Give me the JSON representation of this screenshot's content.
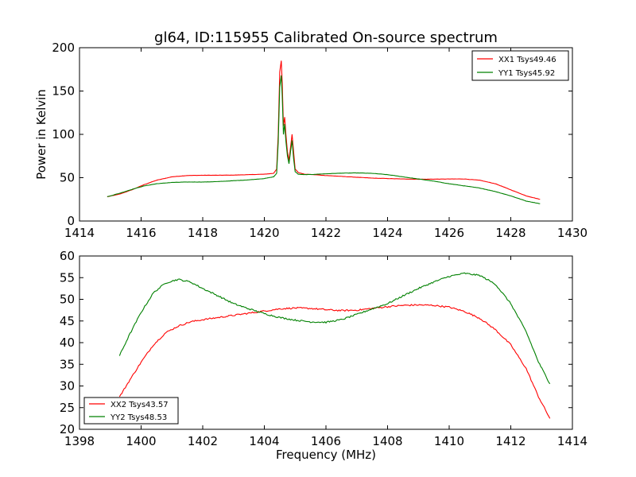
{
  "figure_title": "gl64, ID:115955 Calibrated On-source spectrum",
  "colors": {
    "red": "#ff0000",
    "green": "#008000",
    "axis": "#000000"
  },
  "chart_data": [
    {
      "type": "line",
      "title": "gl64, ID:115955 Calibrated On-source spectrum",
      "xlabel": "",
      "ylabel": "Power in Kelvin",
      "xlim": [
        1414,
        1430
      ],
      "ylim": [
        0,
        200
      ],
      "xticks": [
        "1414",
        "1416",
        "1418",
        "1420",
        "1422",
        "1424",
        "1426",
        "1428",
        "1430"
      ],
      "yticks": [
        "0",
        "50",
        "100",
        "150",
        "200"
      ],
      "legend": "top-right",
      "series": [
        {
          "name": "XX1 Tsys49.46",
          "color": "#ff0000",
          "points": [
            [
              1414.9,
              28
            ],
            [
              1415.3,
              31
            ],
            [
              1415.7,
              36
            ],
            [
              1416.1,
              42
            ],
            [
              1416.5,
              47
            ],
            [
              1417.0,
              51
            ],
            [
              1417.5,
              52.5
            ],
            [
              1418.0,
              52.8
            ],
            [
              1418.5,
              52.8
            ],
            [
              1419.0,
              53
            ],
            [
              1419.5,
              53.5
            ],
            [
              1420.0,
              54
            ],
            [
              1420.3,
              55
            ],
            [
              1420.4,
              60
            ],
            [
              1420.45,
              100
            ],
            [
              1420.5,
              172
            ],
            [
              1420.55,
              185
            ],
            [
              1420.58,
              160
            ],
            [
              1420.62,
              110
            ],
            [
              1420.66,
              120
            ],
            [
              1420.7,
              100
            ],
            [
              1420.75,
              80
            ],
            [
              1420.8,
              70
            ],
            [
              1420.85,
              85
            ],
            [
              1420.9,
              100
            ],
            [
              1420.95,
              80
            ],
            [
              1421.0,
              60
            ],
            [
              1421.1,
              56
            ],
            [
              1421.3,
              54
            ],
            [
              1421.6,
              53.5
            ],
            [
              1422.0,
              52.5
            ],
            [
              1422.5,
              51.5
            ],
            [
              1423.0,
              50.5
            ],
            [
              1423.5,
              49.5
            ],
            [
              1424.0,
              49
            ],
            [
              1424.5,
              48.5
            ],
            [
              1425.0,
              48.2
            ],
            [
              1425.5,
              48.3
            ],
            [
              1426.0,
              48.5
            ],
            [
              1426.5,
              48.5
            ],
            [
              1427.0,
              47
            ],
            [
              1427.5,
              43
            ],
            [
              1428.0,
              36
            ],
            [
              1428.5,
              29
            ],
            [
              1428.95,
              25
            ]
          ]
        },
        {
          "name": "YY1 Tsys45.92",
          "color": "#008000",
          "points": [
            [
              1414.9,
              28
            ],
            [
              1415.3,
              32
            ],
            [
              1415.7,
              36.5
            ],
            [
              1416.1,
              40.5
            ],
            [
              1416.5,
              43
            ],
            [
              1417.0,
              44.5
            ],
            [
              1417.5,
              45
            ],
            [
              1418.0,
              45
            ],
            [
              1418.5,
              45.5
            ],
            [
              1419.0,
              46.5
            ],
            [
              1419.5,
              47.5
            ],
            [
              1420.0,
              49
            ],
            [
              1420.3,
              51
            ],
            [
              1420.4,
              55
            ],
            [
              1420.45,
              90
            ],
            [
              1420.5,
              155
            ],
            [
              1420.55,
              168
            ],
            [
              1420.58,
              145
            ],
            [
              1420.62,
              100
            ],
            [
              1420.66,
              112
            ],
            [
              1420.7,
              92
            ],
            [
              1420.75,
              75
            ],
            [
              1420.8,
              66
            ],
            [
              1420.85,
              80
            ],
            [
              1420.9,
              93
            ],
            [
              1420.95,
              72
            ],
            [
              1421.0,
              57
            ],
            [
              1421.1,
              54
            ],
            [
              1421.3,
              53.5
            ],
            [
              1421.6,
              53.8
            ],
            [
              1422.0,
              54.5
            ],
            [
              1422.5,
              55.2
            ],
            [
              1423.0,
              55.5
            ],
            [
              1423.5,
              55
            ],
            [
              1424.0,
              53.5
            ],
            [
              1424.5,
              51
            ],
            [
              1425.0,
              48.5
            ],
            [
              1425.5,
              46
            ],
            [
              1426.0,
              43
            ],
            [
              1426.5,
              40.5
            ],
            [
              1427.0,
              38
            ],
            [
              1427.5,
              34
            ],
            [
              1428.0,
              29
            ],
            [
              1428.5,
              23
            ],
            [
              1428.95,
              20
            ]
          ]
        }
      ]
    },
    {
      "type": "line",
      "title": "",
      "xlabel": "Frequency (MHz)",
      "ylabel": "",
      "xlim": [
        1398,
        1414
      ],
      "ylim": [
        20,
        60
      ],
      "xticks": [
        "1398",
        "1400",
        "1402",
        "1404",
        "1406",
        "1408",
        "1410",
        "1412",
        "1414"
      ],
      "yticks": [
        "20",
        "25",
        "30",
        "35",
        "40",
        "45",
        "50",
        "55",
        "60"
      ],
      "legend": "bottom-left",
      "series": [
        {
          "name": "XX2 Tsys43.57",
          "color": "#ff0000",
          "points": [
            [
              1399.3,
              27.5
            ],
            [
              1399.6,
              31
            ],
            [
              1400.0,
              35.5
            ],
            [
              1400.4,
              39.5
            ],
            [
              1400.8,
              42.3
            ],
            [
              1401.2,
              43.8
            ],
            [
              1401.6,
              44.8
            ],
            [
              1402.0,
              45.3
            ],
            [
              1402.5,
              45.8
            ],
            [
              1403.0,
              46.3
            ],
            [
              1403.5,
              46.8
            ],
            [
              1404.0,
              47.3
            ],
            [
              1404.5,
              47.8
            ],
            [
              1405.0,
              48
            ],
            [
              1405.5,
              47.9
            ],
            [
              1406.0,
              47.6
            ],
            [
              1406.5,
              47.4
            ],
            [
              1407.0,
              47.5
            ],
            [
              1407.5,
              47.9
            ],
            [
              1408.0,
              48.3
            ],
            [
              1408.5,
              48.6
            ],
            [
              1409.0,
              48.7
            ],
            [
              1409.5,
              48.6
            ],
            [
              1410.0,
              48.2
            ],
            [
              1410.5,
              47.2
            ],
            [
              1411.0,
              45.6
            ],
            [
              1411.5,
              43
            ],
            [
              1412.0,
              39.5
            ],
            [
              1412.5,
              34
            ],
            [
              1412.9,
              27.5
            ],
            [
              1413.27,
              22.5
            ]
          ]
        },
        {
          "name": "YY2 Tsys48.53",
          "color": "#008000",
          "points": [
            [
              1399.3,
              37
            ],
            [
              1399.6,
              41.5
            ],
            [
              1400.0,
              47
            ],
            [
              1400.4,
              51.5
            ],
            [
              1400.8,
              53.8
            ],
            [
              1401.2,
              54.6
            ],
            [
              1401.6,
              54
            ],
            [
              1402.0,
              52.5
            ],
            [
              1402.5,
              50.8
            ],
            [
              1403.0,
              49
            ],
            [
              1403.5,
              47.8
            ],
            [
              1404.0,
              46.7
            ],
            [
              1404.5,
              45.8
            ],
            [
              1405.0,
              45.2
            ],
            [
              1405.5,
              44.8
            ],
            [
              1406.0,
              44.7
            ],
            [
              1406.5,
              45.3
            ],
            [
              1407.0,
              46.5
            ],
            [
              1407.5,
              47.8
            ],
            [
              1408.0,
              49
            ],
            [
              1408.5,
              50.8
            ],
            [
              1409.0,
              52.5
            ],
            [
              1409.5,
              54
            ],
            [
              1410.0,
              55.3
            ],
            [
              1410.5,
              56
            ],
            [
              1411.0,
              55.5
            ],
            [
              1411.5,
              53.5
            ],
            [
              1412.0,
              49
            ],
            [
              1412.5,
              42.5
            ],
            [
              1412.9,
              35.5
            ],
            [
              1413.27,
              30.5
            ]
          ]
        }
      ]
    }
  ]
}
